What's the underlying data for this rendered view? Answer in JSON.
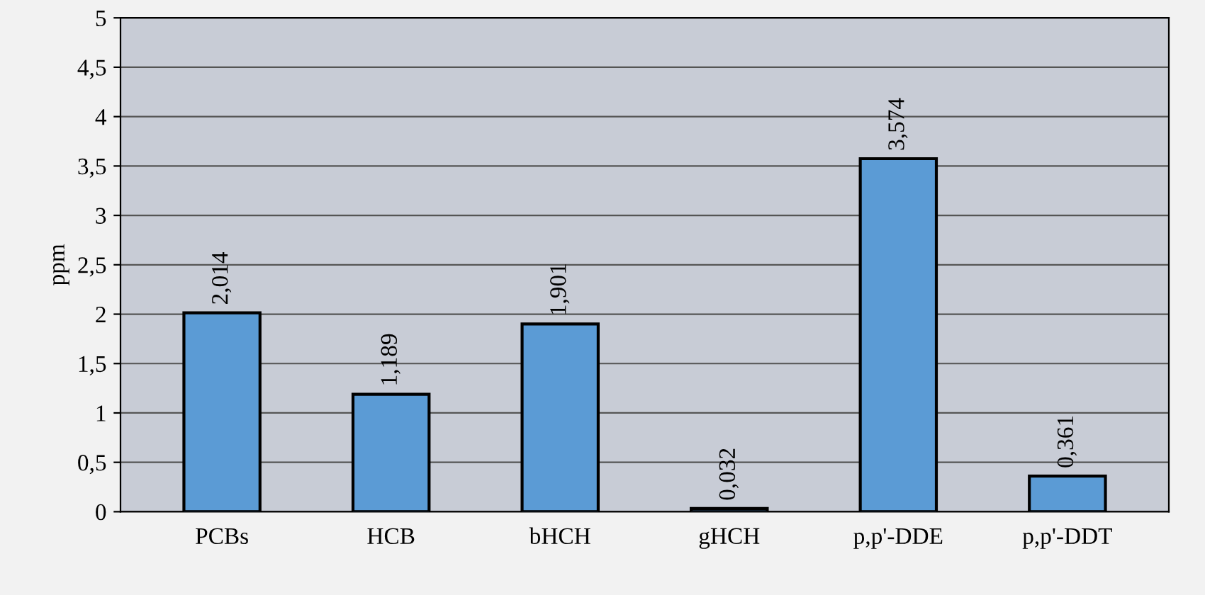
{
  "chart_data": {
    "type": "bar",
    "ylabel": "ppm",
    "categories": [
      "PCBs",
      "HCB",
      "bHCH",
      "gHCH",
      "p,p'-DDE",
      "p,p'-DDT"
    ],
    "values": [
      2.014,
      1.189,
      1.901,
      0.032,
      3.574,
      0.361
    ],
    "value_labels": [
      "2,014",
      "1,189",
      "1,901",
      "0,032",
      "3,574",
      "0,361"
    ],
    "color": "#5b9bd5",
    "ylim": [
      0,
      5
    ],
    "yticks": [
      0,
      {
        "value": 0.5,
        "label": "0,5"
      },
      1,
      {
        "value": 1.5,
        "label": "1,5"
      },
      2,
      {
        "value": 2.5,
        "label": "2,5"
      },
      3,
      {
        "value": 3.5,
        "label": "3,5"
      },
      4,
      {
        "value": 4.5,
        "label": "4,5"
      },
      5
    ],
    "grid": "y"
  }
}
